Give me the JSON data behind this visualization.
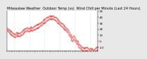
{
  "title": "Milwaukee Weather  Outdoor Temp (vs)  Wind Chill per Minute (Last 24 Hours)",
  "bg_color": "#e8e8e8",
  "plot_bg": "#ffffff",
  "line_color": "#dd0000",
  "ylim": [
    -15,
    50
  ],
  "grid_color": "#aaaaaa",
  "x_points": [
    0,
    1,
    2,
    3,
    4,
    5,
    6,
    7,
    8,
    9,
    10,
    11,
    12,
    13,
    14,
    15,
    16,
    17,
    18,
    19,
    20,
    21,
    22,
    23,
    24,
    25,
    26,
    27,
    28,
    29,
    30,
    31,
    32,
    33,
    34,
    35,
    36,
    37,
    38,
    39,
    40,
    41,
    42,
    43,
    44,
    45,
    46,
    47,
    48,
    49,
    50,
    51,
    52,
    53,
    54,
    55,
    56,
    57,
    58,
    59,
    60,
    61,
    62,
    63,
    64,
    65,
    66,
    67,
    68,
    69,
    70,
    71,
    72,
    73,
    74,
    75,
    76,
    77,
    78,
    79,
    80,
    81,
    82,
    83,
    84,
    85,
    86,
    87,
    88,
    89,
    90,
    91,
    92,
    93,
    94,
    95,
    96,
    97,
    98,
    99,
    100,
    101,
    102,
    103,
    104,
    105,
    106,
    107,
    108,
    109,
    110,
    111,
    112,
    113,
    114,
    115,
    116,
    117,
    118,
    119,
    120,
    121,
    122,
    123,
    124,
    125,
    126,
    127,
    128,
    129,
    130,
    131,
    132,
    133,
    134,
    135,
    136,
    137,
    138,
    139,
    140,
    141,
    142,
    143
  ],
  "y_outdoor": [
    22,
    21,
    20,
    19,
    18,
    17,
    17,
    16,
    15,
    14,
    13,
    13,
    12,
    12,
    14,
    15,
    14,
    13,
    14,
    14,
    13,
    14,
    15,
    16,
    17,
    18,
    19,
    20,
    21,
    22,
    21,
    22,
    23,
    22,
    21,
    22,
    22,
    23,
    24,
    23,
    22,
    23,
    24,
    25,
    25,
    26,
    27,
    27,
    28,
    27,
    28,
    29,
    30,
    31,
    32,
    31,
    33,
    34,
    35,
    36,
    36,
    37,
    38,
    39,
    40,
    40,
    41,
    42,
    42,
    41,
    42,
    41,
    42,
    42,
    41,
    40,
    40,
    39,
    38,
    37,
    36,
    35,
    34,
    33,
    32,
    31,
    30,
    29,
    28,
    27,
    26,
    25,
    24,
    23,
    22,
    21,
    20,
    18,
    16,
    14,
    12,
    10,
    8,
    7,
    6,
    8,
    9,
    7,
    5,
    3,
    2,
    1,
    0,
    -2,
    -4,
    -5,
    -6,
    -7,
    -8,
    -9,
    -10,
    -11,
    -12,
    -11,
    -10,
    -10,
    -9,
    -10,
    -11,
    -12,
    -13,
    -12,
    -11,
    -12,
    -13,
    -12,
    -13,
    -14,
    -13,
    -12,
    -11,
    -10,
    -9,
    -8
  ],
  "y_windchill": [
    18,
    17,
    16,
    15,
    14,
    13,
    12,
    11,
    10,
    9,
    8,
    8,
    7,
    7,
    9,
    10,
    9,
    8,
    9,
    9,
    8,
    9,
    10,
    11,
    12,
    13,
    14,
    15,
    16,
    17,
    16,
    17,
    18,
    17,
    16,
    17,
    17,
    18,
    19,
    18,
    17,
    18,
    19,
    20,
    20,
    21,
    22,
    22,
    23,
    22,
    23,
    24,
    25,
    26,
    27,
    26,
    28,
    29,
    30,
    31,
    31,
    32,
    33,
    34,
    35,
    35,
    36,
    37,
    37,
    36,
    37,
    36,
    37,
    37,
    36,
    35,
    35,
    34,
    33,
    32,
    31,
    30,
    29,
    28,
    27,
    26,
    25,
    24,
    23,
    22,
    21,
    20,
    19,
    18,
    17,
    16,
    15,
    13,
    11,
    9,
    7,
    5,
    3,
    2,
    1,
    3,
    4,
    2,
    0,
    -2,
    -3,
    -4,
    -5,
    -7,
    -9,
    -10,
    -11,
    -12,
    -13,
    -14,
    -15,
    -16,
    -17,
    -16,
    -15,
    -15,
    -14,
    -15,
    -16,
    -17,
    -18,
    -17,
    -16,
    -17,
    -18,
    -17,
    -18,
    -19,
    -18,
    -17,
    -16,
    -15,
    -14,
    -13
  ],
  "vgrid_positions": [
    12,
    36,
    60,
    84,
    108,
    132
  ],
  "title_fontsize": 3.5,
  "tick_fontsize": 3.0,
  "marker_size": 0.5,
  "ytick_vals": [
    -10,
    0,
    10,
    20,
    30,
    40,
    50
  ]
}
